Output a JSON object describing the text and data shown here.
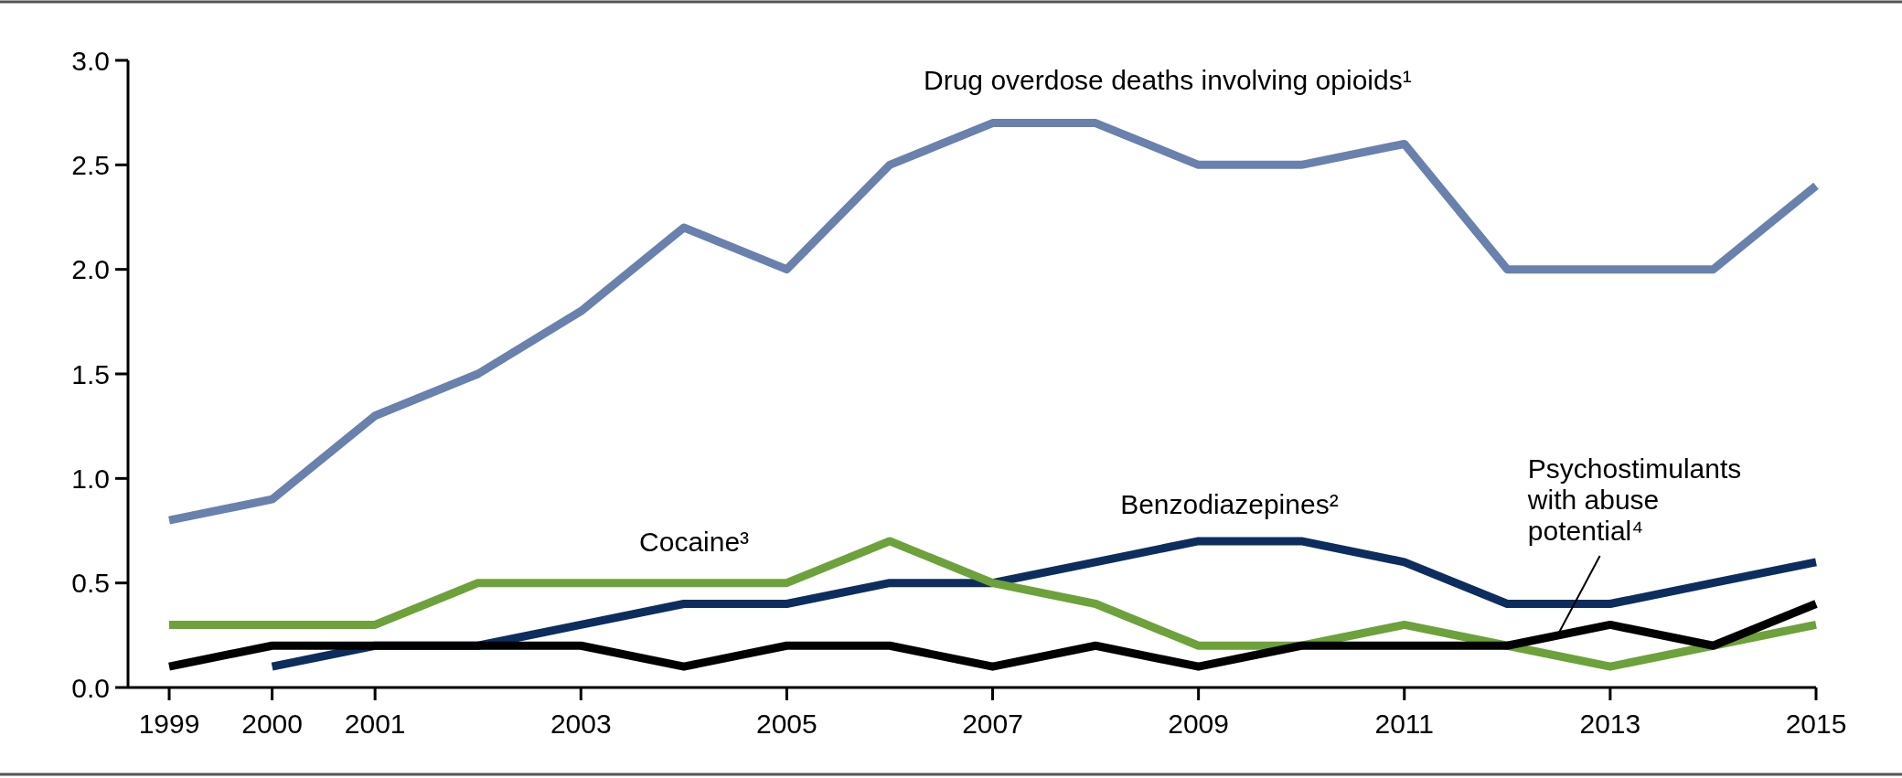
{
  "chart_data": {
    "type": "line",
    "x": [
      1999,
      2000,
      2001,
      2002,
      2003,
      2004,
      2005,
      2006,
      2007,
      2008,
      2009,
      2010,
      2011,
      2012,
      2013,
      2014,
      2015
    ],
    "series": [
      {
        "name": "Drug overdose deaths involving opioids¹",
        "color": "#6a80ad",
        "values": [
          0.8,
          0.9,
          1.3,
          1.5,
          1.8,
          2.2,
          2.0,
          2.5,
          2.7,
          2.7,
          2.5,
          2.5,
          2.6,
          2.0,
          2.0,
          2.0,
          2.4
        ]
      },
      {
        "name": "Benzodiazepines²",
        "color": "#0d2d5e",
        "values": [
          null,
          0.1,
          0.2,
          0.2,
          0.3,
          0.4,
          0.4,
          0.5,
          0.5,
          0.6,
          0.7,
          0.7,
          0.6,
          0.4,
          0.4,
          0.5,
          0.6
        ]
      },
      {
        "name": "Cocaine³",
        "color": "#6da13a",
        "values": [
          0.3,
          0.3,
          0.3,
          0.5,
          0.5,
          0.5,
          0.5,
          0.7,
          0.5,
          0.4,
          0.2,
          0.2,
          0.3,
          0.2,
          0.1,
          0.2,
          0.3
        ]
      },
      {
        "name": "Psychostimulants with abuse potential⁴",
        "color": "#000000",
        "values": [
          0.1,
          0.2,
          0.2,
          0.2,
          0.2,
          0.1,
          0.2,
          0.2,
          0.1,
          0.2,
          0.1,
          0.2,
          0.2,
          0.2,
          0.3,
          0.2,
          0.4
        ]
      }
    ],
    "xlim": [
      1998.6,
      2015
    ],
    "xticks": [
      1999,
      2000,
      2001,
      2003,
      2005,
      2007,
      2009,
      2011,
      2013,
      2015
    ],
    "ylim": [
      0,
      3
    ],
    "yticks": [
      {
        "value": 0,
        "label": "0.0"
      },
      {
        "value": 0.5,
        "label": "0.5"
      },
      {
        "value": 1,
        "label": "1.0"
      },
      {
        "value": 1.5,
        "label": "1.5"
      },
      {
        "value": 2,
        "label": "2.0"
      },
      {
        "value": 2.5,
        "label": "2.5"
      },
      {
        "value": 3,
        "label": "3.0"
      }
    ],
    "grid": false,
    "marker": "none",
    "line_style": "solid"
  }
}
